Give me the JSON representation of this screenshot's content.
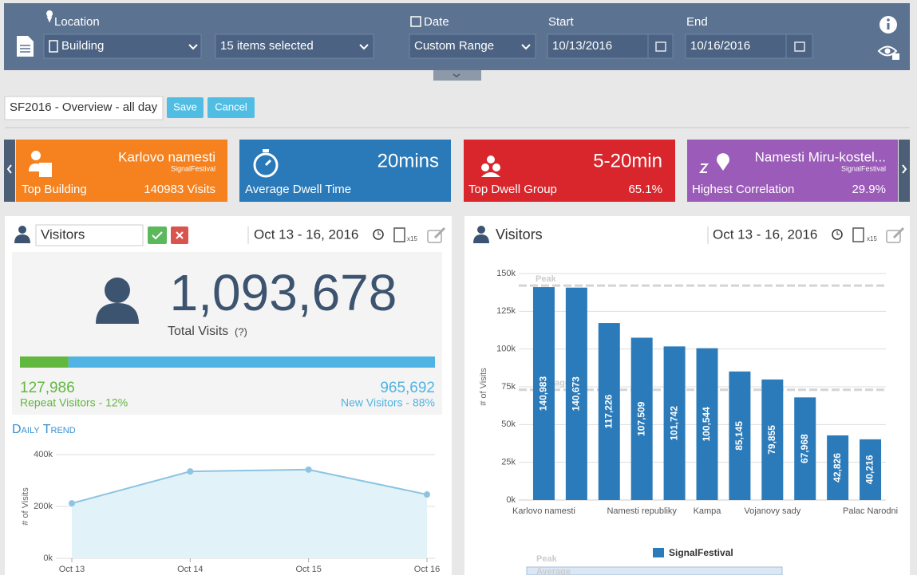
{
  "filters": {
    "location_label": "Location",
    "location_value": "Building",
    "items_value": "15 items selected",
    "date_label": "Date",
    "date_value": "Custom Range",
    "start_label": "Start",
    "start_value": "10/13/2016",
    "end_label": "End",
    "end_value": "10/16/2016"
  },
  "view": {
    "name": "SF2016 - Overview - all day",
    "save": "Save",
    "cancel": "Cancel"
  },
  "kpis": [
    {
      "title": "Karlovo namesti",
      "subtitle": "SignalFestival",
      "label": "Top Building",
      "value": "140983 Visits",
      "color": "#f5821f"
    },
    {
      "title": "20mins",
      "label": "Average Dwell Time",
      "color": "#2a79b8"
    },
    {
      "title": "5-20min",
      "label": "Top Dwell Group",
      "value": "65.1%",
      "color": "#d8262c"
    },
    {
      "title": "Namesti Miru-kostel...",
      "subtitle": "SignalFestival",
      "label": "Highest Correlation",
      "value": "29.9%",
      "color": "#9b5bb8"
    }
  ],
  "left_panel": {
    "title": "Visitors",
    "date_range": "Oct 13 - 16, 2016",
    "count_badge": "x15",
    "total": "1,093,678",
    "total_label": "Total Visits",
    "help": "(?)",
    "repeat": {
      "value": 127986,
      "label": "127,986",
      "caption": "Repeat Visitors - 12%",
      "color": "#62b83f"
    },
    "new": {
      "value": 965692,
      "label": "965,692",
      "caption": "New Visitors - 88%",
      "color": "#4fb4e3"
    },
    "trend_title": "Daily Trend"
  },
  "right_panel": {
    "title": "Visitors",
    "date_range": "Oct 13 - 16, 2016",
    "count_badge": "x15"
  },
  "chart_data": [
    {
      "type": "line",
      "y_label": "# of Visits",
      "categories": [
        "Oct 13",
        "Oct 14",
        "Oct 15",
        "Oct 16"
      ],
      "values": [
        212000,
        335000,
        342000,
        246000
      ],
      "color": "#8cc4e2",
      "area_color": "#e2f2f9",
      "ylim": [
        0,
        400000
      ],
      "yticks": [
        {
          "value": 0,
          "label": "0k"
        },
        {
          "value": 200000,
          "label": "200k"
        },
        {
          "value": 400000,
          "label": "400k"
        }
      ],
      "grid": true
    },
    {
      "type": "bar",
      "y_label": "# of Visits",
      "categories": [
        "Karlovo namesti",
        null,
        null,
        "Namesti republiky",
        null,
        "Kampa",
        null,
        "Vojanovy sady",
        null,
        null,
        "Palac Narodni"
      ],
      "series": [
        {
          "name": "SignalFestival",
          "color": "#2b7bba",
          "values": [
            140983,
            140673,
            117226,
            107509,
            101742,
            100544,
            85145,
            79855,
            67968,
            42826,
            40216
          ],
          "value_labels": [
            "140,983",
            "140,673",
            "117,226",
            "107,509",
            "101,742",
            "100,544",
            "85,145",
            "79,855",
            "67,968",
            "42,826",
            "40,216"
          ]
        }
      ],
      "reference_lines": [
        {
          "label": "Peak",
          "value": 142000
        },
        {
          "label": "Average",
          "value": 73000
        }
      ],
      "ylim": [
        0,
        150000
      ],
      "yticks": [
        {
          "value": 0,
          "label": "0k"
        },
        {
          "value": 25000,
          "label": "25k"
        },
        {
          "value": 50000,
          "label": "50k"
        },
        {
          "value": 75000,
          "label": "75k"
        },
        {
          "value": 100000,
          "label": "100k"
        },
        {
          "value": 125000,
          "label": "125k"
        },
        {
          "value": 150000,
          "label": "150k"
        }
      ],
      "grid": true
    }
  ]
}
